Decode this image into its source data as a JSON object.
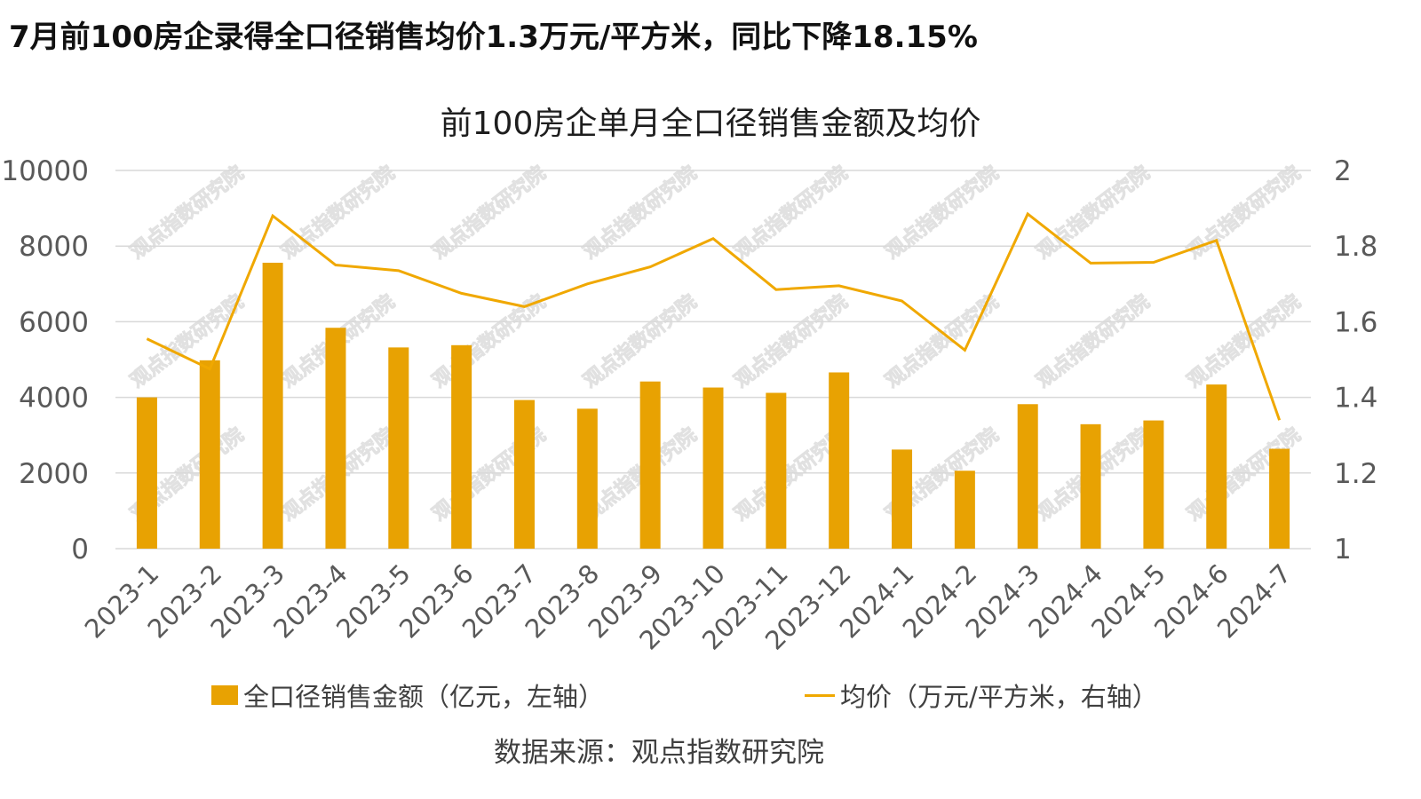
{
  "headline": "7月前100房企录得全口径销售均价1.3万元/平方米，同比下降18.15%",
  "colors": {
    "bar": "#E8A202",
    "line": "#F0A800",
    "grid": "#D9D9D9",
    "axis_text": "#595959"
  },
  "legend": {
    "bar_label": "全口径销售金额（亿元，左轴）",
    "line_label": "均价（万元/平方米，右轴）"
  },
  "source": "数据来源：观点指数研究院",
  "watermark": "观点指数研究院",
  "chart_data": {
    "type": "bar",
    "title": "前100房企单月全口径销售金额及均价",
    "categories": [
      "2023-1",
      "2023-2",
      "2023-3",
      "2023-4",
      "2023-5",
      "2023-6",
      "2023-7",
      "2023-8",
      "2023-9",
      "2023-10",
      "2023-11",
      "2023-12",
      "2024-1",
      "2024-2",
      "2024-3",
      "2024-4",
      "2024-5",
      "2024-6",
      "2024-7"
    ],
    "series": [
      {
        "name": "全口径销售金额（亿元，左轴）",
        "type": "bar",
        "axis": "left",
        "values": [
          4000,
          4980,
          7560,
          5840,
          5320,
          5380,
          3930,
          3700,
          4420,
          4260,
          4120,
          4660,
          2620,
          2060,
          3820,
          3290,
          3390,
          4340,
          2640
        ]
      },
      {
        "name": "均价（万元/平方米，右轴）",
        "type": "line",
        "axis": "right",
        "values": [
          1.555,
          1.475,
          1.88,
          1.75,
          1.735,
          1.675,
          1.64,
          1.7,
          1.745,
          1.82,
          1.685,
          1.695,
          1.655,
          1.525,
          1.885,
          1.755,
          1.757,
          1.815,
          1.34
        ]
      }
    ],
    "ylim_left": [
      0,
      10000
    ],
    "yticks_left": [
      "0",
      "2000",
      "4000",
      "6000",
      "8000",
      "10000"
    ],
    "ylim_right": [
      1,
      2
    ],
    "yticks_right": [
      "1",
      "1.2",
      "1.4",
      "1.6",
      "1.8",
      "2"
    ],
    "grid": true,
    "legend_position": "bottom"
  }
}
